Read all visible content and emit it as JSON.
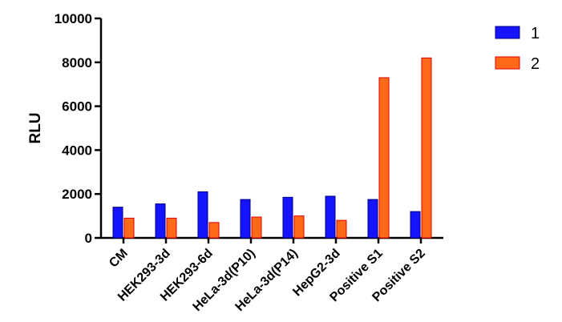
{
  "chart_data": {
    "type": "bar",
    "title": "",
    "xlabel": "",
    "ylabel": "RLU",
    "ylim": [
      0,
      10000
    ],
    "yticks": [
      0,
      2000,
      4000,
      6000,
      8000,
      10000
    ],
    "ytick_labels": [
      "0",
      "2000",
      "4000",
      "6000",
      "8000",
      "10000"
    ],
    "categories": [
      "CM",
      "HEK293-3d",
      "HEK293-6d",
      "HeLa-3d(P10)",
      "HeLa-3d(P14)",
      "HepG2-3d",
      "Positive S1",
      "Positive S2"
    ],
    "series": [
      {
        "name": "1",
        "color": "#1414ff",
        "edge": "#000080",
        "values": [
          1400,
          1550,
          2100,
          1750,
          1850,
          1900,
          1750,
          1200
        ]
      },
      {
        "name": "2",
        "color": "#ff6a1a",
        "edge": "#e00000",
        "values": [
          900,
          900,
          700,
          950,
          1000,
          800,
          7300,
          8200
        ]
      }
    ],
    "legend_position": "top-right",
    "grid": false
  }
}
